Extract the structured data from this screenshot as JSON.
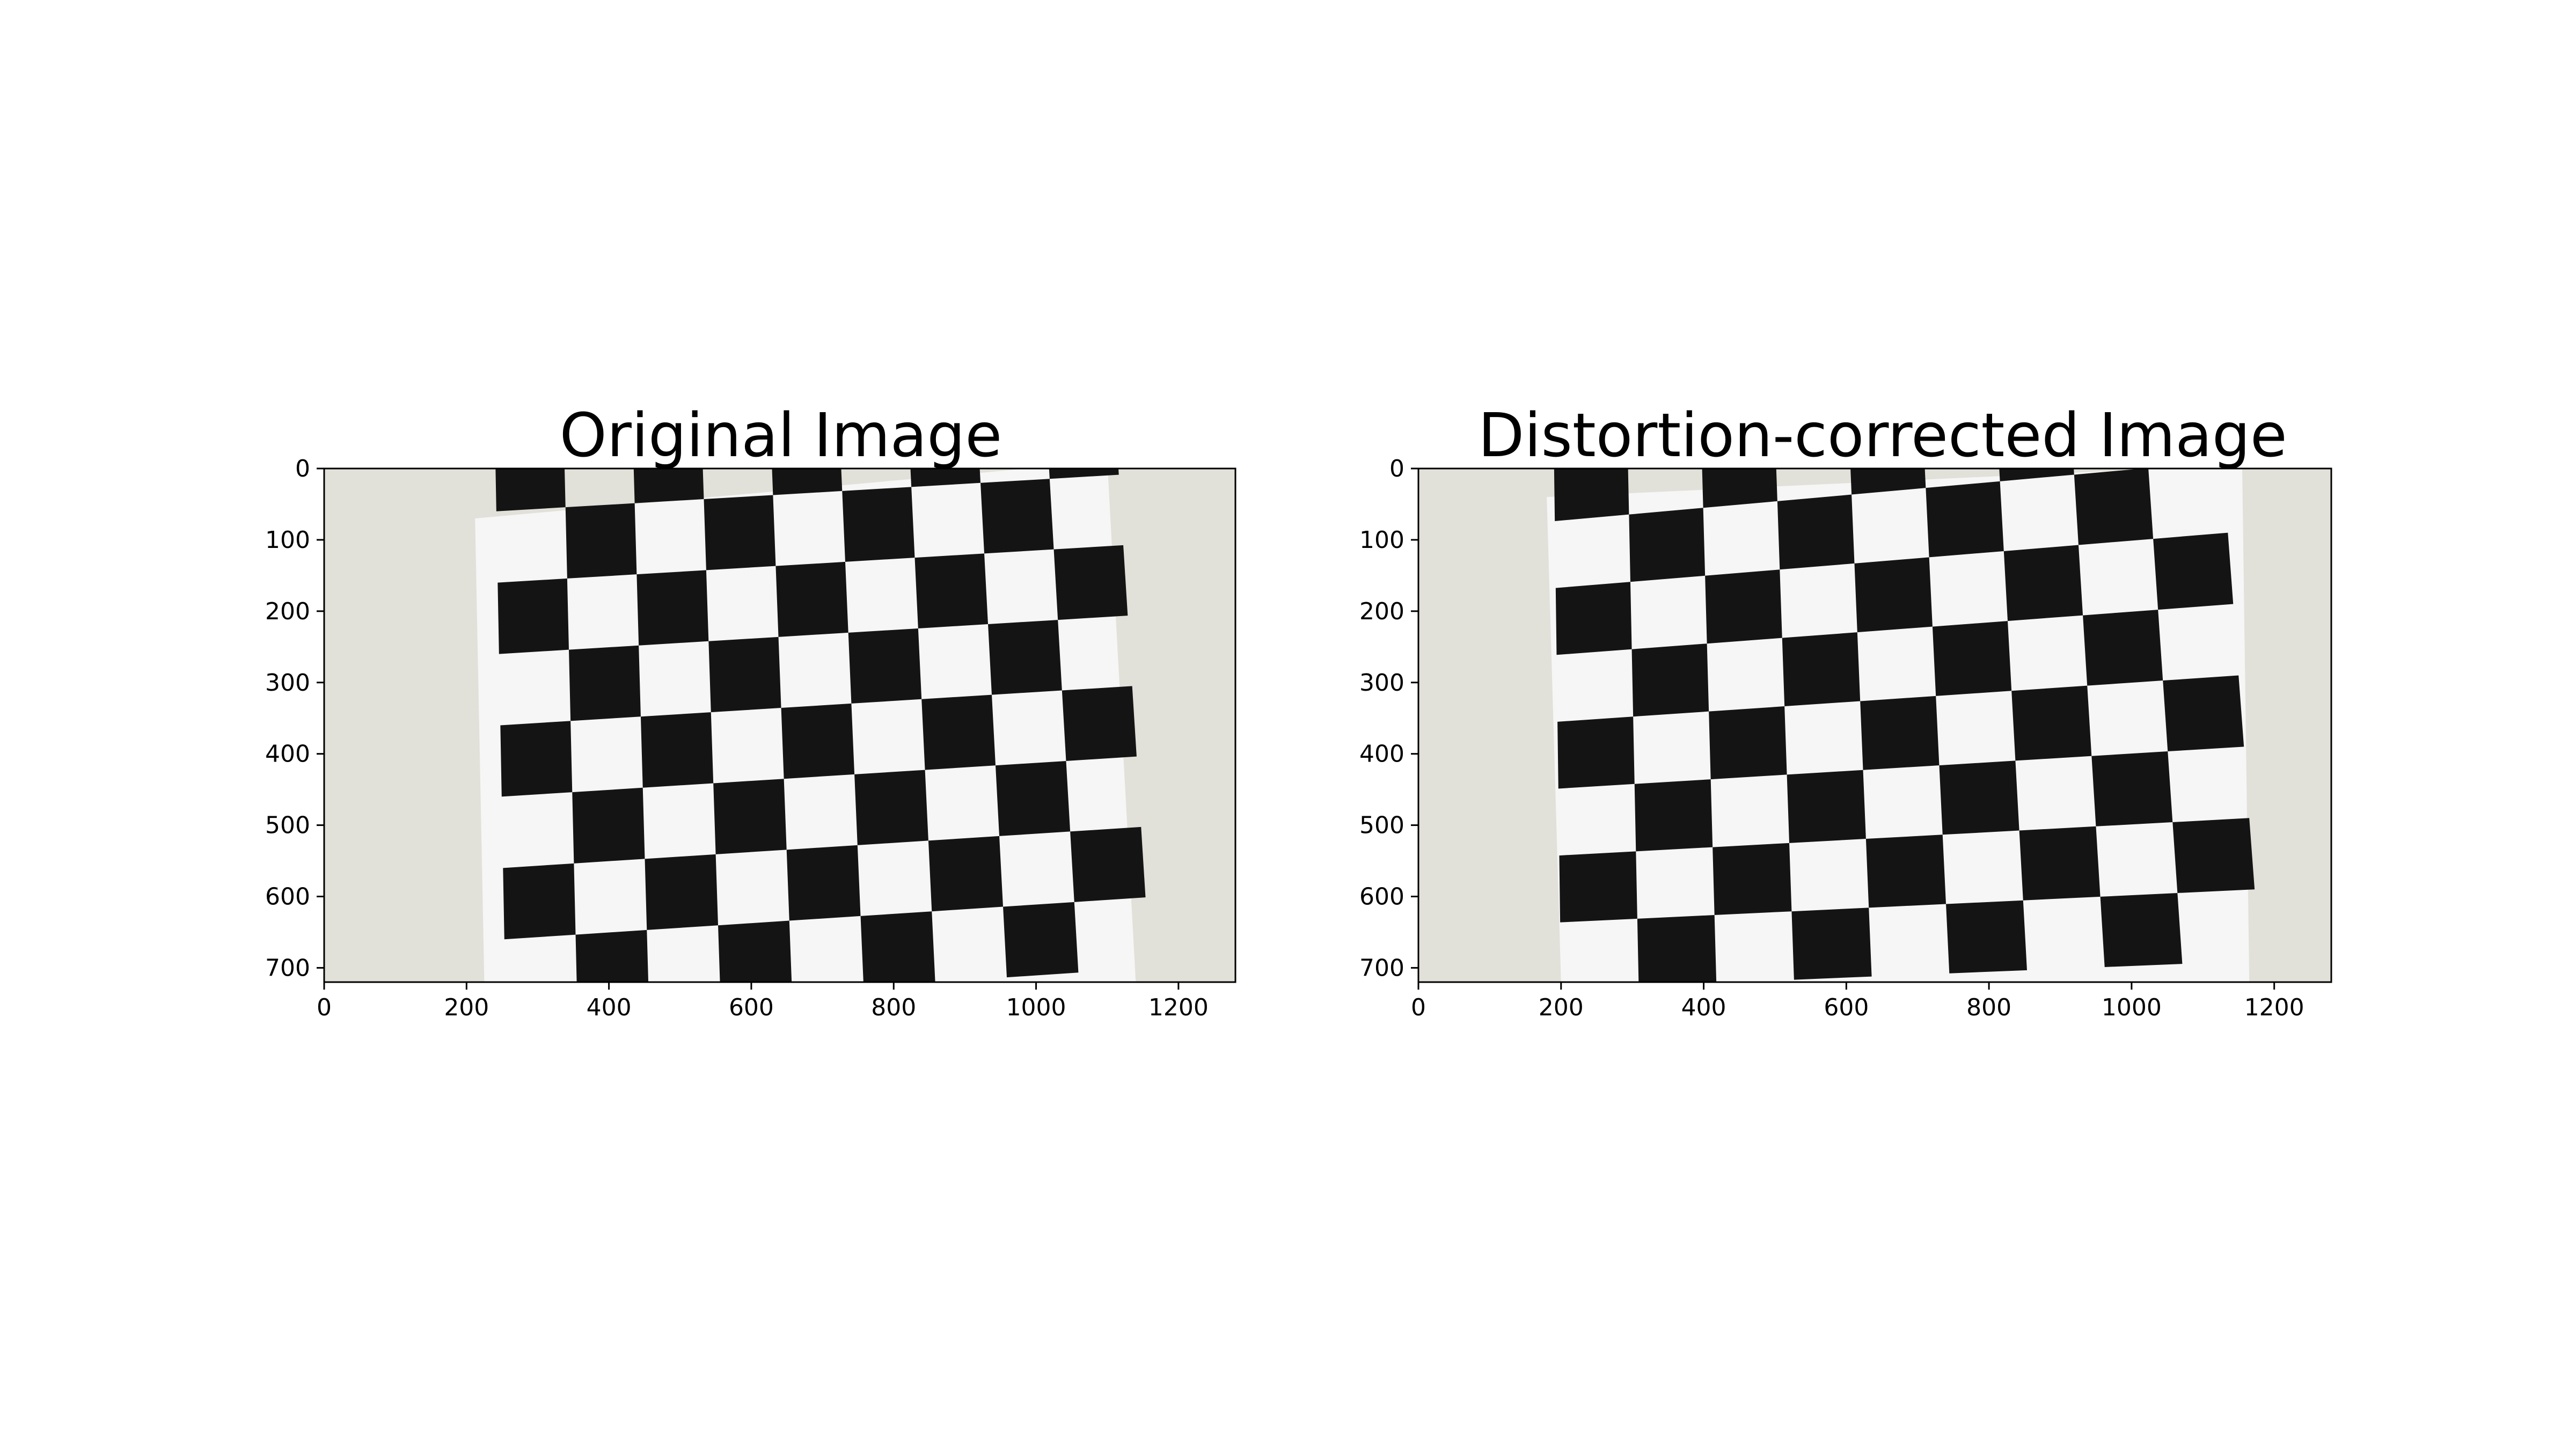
{
  "panels": [
    {
      "title": "Original Image",
      "x_ticks": [
        "0",
        "200",
        "400",
        "600",
        "800",
        "1000",
        "1200"
      ],
      "y_ticks": [
        "0",
        "100",
        "200",
        "300",
        "400",
        "500",
        "600",
        "700"
      ],
      "subject": "checkerboard-distorted"
    },
    {
      "title": "Distortion-corrected Image",
      "x_ticks": [
        "0",
        "200",
        "400",
        "600",
        "800",
        "1000",
        "1200"
      ],
      "y_ticks": [
        "0",
        "100",
        "200",
        "300",
        "400",
        "500",
        "600",
        "700"
      ],
      "subject": "checkerboard-corrected"
    }
  ],
  "colors": {
    "wall": "#e2e1d9",
    "paper": "#f6f6f6",
    "square": "#141414"
  }
}
